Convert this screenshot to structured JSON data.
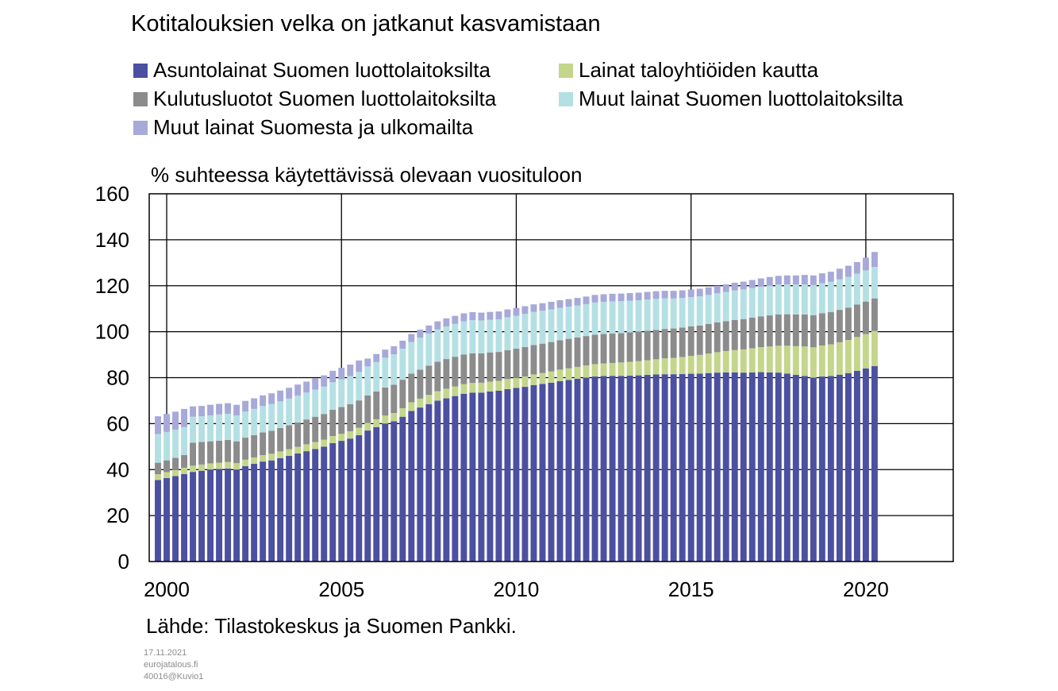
{
  "chart_data": {
    "type": "bar",
    "stacked": true,
    "title": "Kotitalouksien velka on jatkanut kasvamistaan",
    "ylabel": "% suhteessa käytettävissä olevaan vuosituloon",
    "xlabel": "",
    "ylim": [
      0,
      160
    ],
    "yticks": [
      0,
      20,
      40,
      60,
      80,
      100,
      120,
      140,
      160
    ],
    "xticks": [
      "2000",
      "2005",
      "2010",
      "2015",
      "2020"
    ],
    "x_start_year": 1999.75,
    "x_step_years": 0.25,
    "x_axis_range_years": [
      1999.5,
      2022.5
    ],
    "grid": true,
    "legend_placement": "top",
    "series": [
      {
        "name": "Asuntolainat Suomen luottolaitoksilta",
        "color": "#4b50a0",
        "values": [
          35.5,
          36.3,
          37.2,
          38.1,
          39.0,
          39.5,
          40.0,
          40.3,
          40.5,
          40.0,
          41.5,
          42.5,
          43.5,
          44.0,
          45.0,
          46.0,
          47.0,
          48.0,
          49.0,
          50.0,
          51.5,
          52.5,
          53.5,
          55.0,
          57.0,
          58.5,
          60.0,
          61.0,
          63.0,
          65.5,
          67.0,
          68.5,
          70.0,
          71.0,
          72.0,
          73.0,
          73.5,
          73.5,
          74.0,
          74.3,
          75.0,
          75.5,
          76.0,
          76.8,
          77.3,
          77.8,
          78.5,
          79.0,
          79.5,
          80.0,
          80.5,
          80.7,
          80.8,
          80.8,
          80.9,
          81.0,
          81.2,
          81.4,
          81.5,
          81.5,
          81.6,
          81.7,
          81.8,
          82.0,
          82.2,
          82.3,
          82.3,
          82.2,
          82.3,
          82.4,
          82.3,
          82.2,
          81.8,
          81.2,
          80.7,
          80.0,
          80.5,
          80.7,
          81.3,
          82.0,
          83.0,
          84.0,
          85.0
        ]
      },
      {
        "name": "Lainat taloyhtiöiden kautta",
        "color": "#c4d68b",
        "values": [
          2.5,
          2.6,
          2.6,
          2.7,
          2.7,
          2.7,
          2.7,
          2.7,
          2.8,
          2.8,
          2.8,
          2.8,
          2.8,
          2.9,
          2.9,
          2.9,
          2.9,
          3.0,
          3.0,
          3.0,
          3.1,
          3.1,
          3.2,
          3.2,
          3.3,
          3.4,
          3.5,
          3.6,
          3.7,
          3.8,
          3.9,
          4.0,
          4.1,
          4.2,
          4.2,
          4.2,
          4.2,
          4.3,
          4.3,
          4.3,
          4.4,
          4.4,
          4.5,
          4.6,
          4.7,
          4.9,
          5.0,
          5.1,
          5.2,
          5.3,
          5.4,
          5.5,
          5.6,
          5.8,
          6.0,
          6.2,
          6.4,
          6.6,
          6.9,
          7.1,
          7.4,
          7.8,
          8.1,
          8.5,
          8.9,
          9.3,
          9.7,
          10.1,
          10.5,
          10.9,
          11.3,
          11.7,
          12.1,
          12.5,
          12.9,
          13.2,
          13.5,
          13.8,
          14.1,
          14.4,
          14.7,
          15.0,
          15.3
        ]
      },
      {
        "name": "Kulutusluotot Suomen luottolaitoksilta",
        "color": "#8c8c8c",
        "values": [
          5.0,
          5.1,
          5.3,
          5.5,
          10.0,
          9.8,
          9.6,
          9.6,
          9.6,
          9.5,
          9.6,
          9.7,
          9.9,
          10.0,
          10.2,
          10.4,
          10.6,
          10.8,
          11.0,
          11.2,
          11.4,
          11.6,
          11.8,
          11.9,
          12.0,
          12.1,
          12.2,
          12.3,
          12.4,
          12.5,
          12.6,
          12.7,
          12.8,
          12.9,
          12.9,
          12.9,
          12.9,
          12.8,
          12.7,
          12.6,
          12.6,
          12.7,
          12.8,
          12.8,
          12.8,
          12.8,
          12.8,
          12.8,
          12.8,
          12.8,
          12.8,
          12.8,
          12.8,
          12.8,
          12.8,
          12.8,
          12.8,
          12.8,
          12.8,
          12.8,
          12.8,
          12.8,
          12.8,
          12.9,
          13.0,
          13.0,
          13.1,
          13.2,
          13.3,
          13.4,
          13.5,
          13.6,
          13.7,
          13.8,
          13.9,
          14.0,
          14.0,
          14.0,
          14.1,
          14.1,
          14.1,
          14.1,
          14.2
        ]
      },
      {
        "name": "Muut lainat Suomen luottolaitoksilta",
        "color": "#b4e0e4",
        "values": [
          12.5,
          12.4,
          12.3,
          12.2,
          11.3,
          11.2,
          11.3,
          11.4,
          11.4,
          11.3,
          11.4,
          11.4,
          11.5,
          11.6,
          11.6,
          11.6,
          11.7,
          11.7,
          11.8,
          11.9,
          12.0,
          12.1,
          12.2,
          12.4,
          12.6,
          12.8,
          13.0,
          13.3,
          13.5,
          13.7,
          13.9,
          14.0,
          14.1,
          14.2,
          14.3,
          14.4,
          14.4,
          14.3,
          14.2,
          14.2,
          14.3,
          14.4,
          14.5,
          14.4,
          14.3,
          14.2,
          14.1,
          14.0,
          13.9,
          13.9,
          14.0,
          14.0,
          14.0,
          13.9,
          13.8,
          13.7,
          13.6,
          13.5,
          13.3,
          13.1,
          12.9,
          12.8,
          12.7,
          12.6,
          12.6,
          12.7,
          12.8,
          12.9,
          12.9,
          12.9,
          13.0,
          13.0,
          13.0,
          13.0,
          13.1,
          13.1,
          13.1,
          13.2,
          13.3,
          13.4,
          13.5,
          13.6,
          13.7
        ]
      },
      {
        "name": "Muut lainat Suomesta ja ulkomailta",
        "color": "#a7a9d8",
        "values": [
          7.7,
          7.8,
          7.8,
          7.9,
          4.5,
          4.5,
          4.6,
          4.6,
          4.6,
          4.6,
          4.6,
          4.6,
          4.6,
          4.7,
          4.7,
          4.7,
          4.8,
          4.8,
          4.9,
          4.9,
          5.0,
          5.0,
          5.0,
          5.0,
          3.4,
          3.5,
          3.5,
          3.5,
          3.5,
          3.5,
          3.5,
          3.5,
          3.5,
          3.5,
          3.5,
          3.5,
          3.5,
          3.4,
          3.4,
          3.4,
          3.4,
          3.3,
          3.3,
          3.3,
          3.3,
          3.3,
          3.3,
          3.3,
          3.3,
          3.3,
          3.3,
          3.3,
          3.3,
          3.3,
          3.3,
          3.3,
          3.3,
          3.3,
          3.3,
          3.3,
          3.3,
          3.3,
          3.3,
          3.3,
          3.3,
          3.3,
          3.4,
          3.4,
          3.5,
          3.6,
          3.7,
          3.8,
          3.9,
          4.0,
          4.1,
          4.2,
          4.3,
          4.4,
          4.6,
          4.8,
          5.0,
          5.5,
          6.5
        ]
      }
    ],
    "source": "Lähde: Tilastokeskus ja Suomen Pankki."
  },
  "footer": {
    "date": "17.11.2021",
    "site": "eurojatalous.fi",
    "code": "40016@Kuvio1"
  }
}
